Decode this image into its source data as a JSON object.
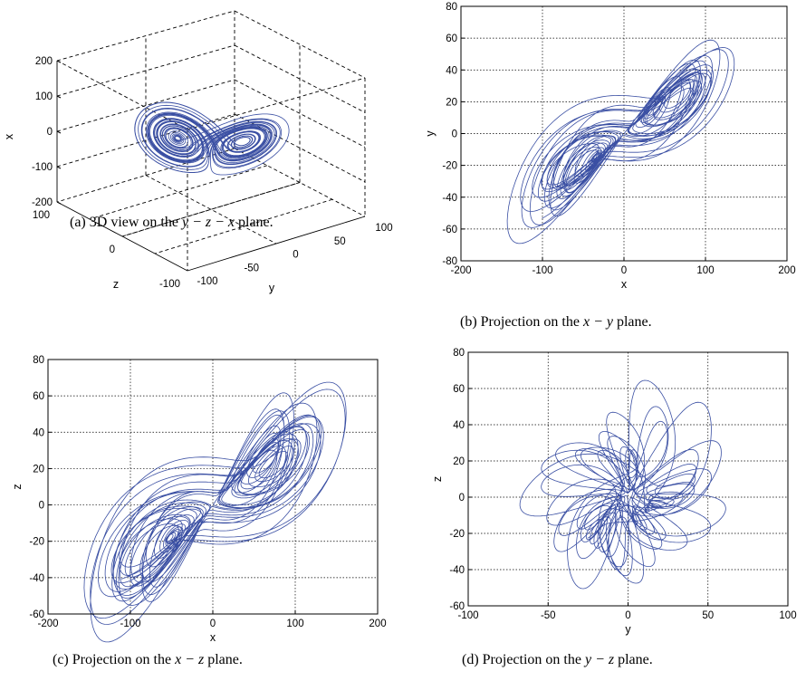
{
  "colors": {
    "trajectory": "#3a4fa3",
    "grid": "#000000",
    "axes": "#000000"
  },
  "captions": {
    "a": {
      "prefix": "(a) 3D view on the ",
      "math": "y − z − x",
      "suffix": " plane."
    },
    "b": {
      "prefix": "(b) Projection on the ",
      "math": "x − y",
      "suffix": " plane."
    },
    "c": {
      "prefix": "(c) Projection on the ",
      "math": "x − z",
      "suffix": " plane."
    },
    "d": {
      "prefix": "(d) Projection on the ",
      "math": "y − z",
      "suffix": " plane."
    }
  },
  "chart_data": [
    {
      "id": "a",
      "type": "line",
      "view": "3d",
      "xlabel": "y",
      "ylabel": "z",
      "zlabel": "x",
      "x_range": [
        -100,
        100
      ],
      "y_range": [
        -100,
        100
      ],
      "z_range": [
        -200,
        200
      ],
      "x_ticks": [
        "-100",
        "-50",
        "0",
        "50",
        "100"
      ],
      "y_ticks": [
        "-100",
        "0",
        "100"
      ],
      "z_ticks": [
        "-200",
        "-100",
        "0",
        "100",
        "200"
      ],
      "grid": true,
      "series": [
        {
          "x_data": "y(t)",
          "y_data": "z(t)",
          "z_data": "x(t)"
        }
      ]
    },
    {
      "id": "b",
      "type": "line",
      "xlabel": "x",
      "ylabel": "y",
      "xlim": [
        -200,
        200
      ],
      "ylim": [
        -80,
        80
      ],
      "x_ticks": [
        -200,
        -100,
        0,
        100,
        200
      ],
      "y_ticks": [
        -80,
        -60,
        -40,
        -20,
        0,
        20,
        40,
        60,
        80
      ],
      "grid": true,
      "approx_extent": {
        "x": [
          -120,
          150
        ],
        "y": [
          -68,
          70
        ]
      }
    },
    {
      "id": "c",
      "type": "line",
      "xlabel": "x",
      "ylabel": "z",
      "xlim": [
        -200,
        200
      ],
      "ylim": [
        -60,
        80
      ],
      "x_ticks": [
        -200,
        -100,
        0,
        100,
        200
      ],
      "y_ticks": [
        -60,
        -40,
        -20,
        0,
        20,
        40,
        60,
        80
      ],
      "grid": true,
      "approx_extent": {
        "x": [
          -150,
          155
        ],
        "z": [
          -58,
          62
        ]
      }
    },
    {
      "id": "d",
      "type": "line",
      "xlabel": "y",
      "ylabel": "z",
      "xlim": [
        -100,
        100
      ],
      "ylim": [
        -60,
        80
      ],
      "x_ticks": [
        -100,
        -50,
        0,
        50,
        100
      ],
      "y_ticks": [
        -60,
        -40,
        -20,
        0,
        20,
        40,
        60,
        80
      ],
      "grid": true,
      "approx_extent": {
        "y": [
          -65,
          68
        ],
        "z": [
          -60,
          65
        ]
      }
    }
  ]
}
